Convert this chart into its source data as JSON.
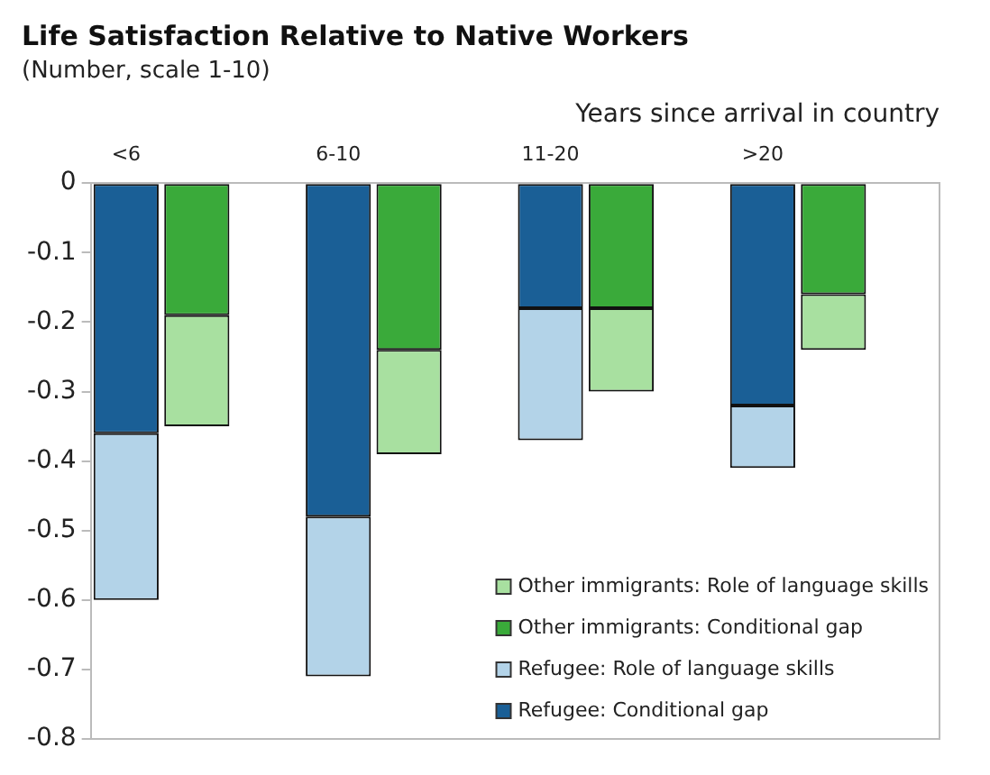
{
  "chart_data": {
    "type": "bar",
    "title": "Life Satisfaction Relative to Native Workers",
    "subtitle": "(Number, scale 1-10)",
    "xlabel": "Years since arrival in country",
    "categories": [
      "<6",
      null,
      null,
      "6-10",
      null,
      null,
      "11-20",
      null,
      null,
      ">20",
      null,
      null
    ],
    "stacked": true,
    "legend": "bottom right",
    "grid": false,
    "ylim": [
      -0.8,
      0
    ],
    "yticks": [
      0,
      -0.1,
      -0.2,
      -0.3,
      -0.4,
      -0.5,
      -0.6,
      -0.7,
      -0.8
    ],
    "series": [
      {
        "name": "Refugee: Conditional gap",
        "color": "#1a5f96",
        "values": [
          -0.36,
          null,
          null,
          -0.48,
          null,
          null,
          -0.18,
          null,
          null,
          -0.32,
          null,
          null
        ]
      },
      {
        "name": "Refugee: Role of language skills",
        "color": "#b3d3e8",
        "values": [
          -0.24,
          null,
          null,
          -0.23,
          null,
          null,
          -0.19,
          null,
          null,
          -0.09,
          null,
          null
        ]
      },
      {
        "name": "Other immigrants: Conditional gap",
        "color": "#3aaa3a",
        "values": [
          null,
          -0.19,
          null,
          null,
          -0.24,
          null,
          null,
          -0.18,
          null,
          null,
          -0.16,
          null
        ]
      },
      {
        "name": "Other immigrants: Role of language skills",
        "color": "#a8e0a0",
        "values": [
          null,
          -0.16,
          null,
          null,
          -0.15,
          null,
          null,
          -0.12,
          null,
          null,
          -0.08,
          null
        ]
      }
    ]
  }
}
